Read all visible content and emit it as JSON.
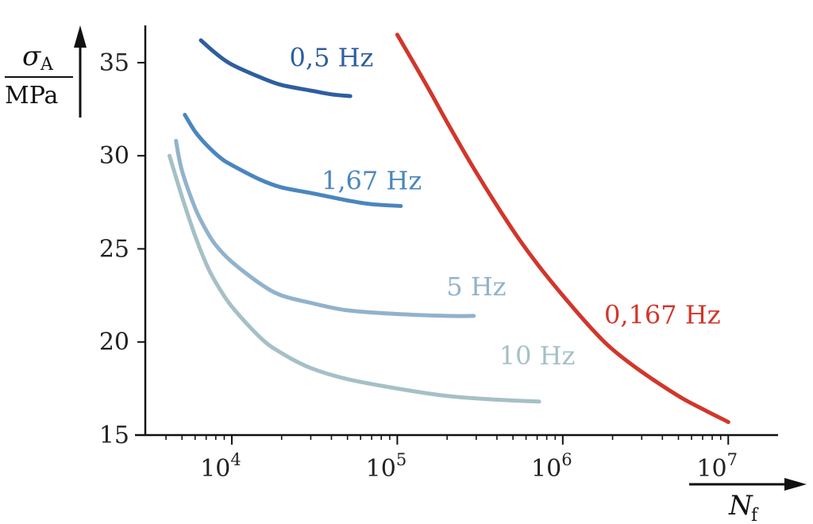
{
  "chart_data": {
    "type": "line",
    "xscale": "log",
    "xlim": [
      3000,
      20000000
    ],
    "ylim": [
      15,
      37
    ],
    "x_ticks": [
      {
        "value": 10000,
        "base": "10",
        "exp": "4"
      },
      {
        "value": 100000,
        "base": "10",
        "exp": "5"
      },
      {
        "value": 1000000,
        "base": "10",
        "exp": "6"
      },
      {
        "value": 10000000,
        "base": "10",
        "exp": "7"
      }
    ],
    "y_ticks": [
      {
        "value": 15,
        "label": "15"
      },
      {
        "value": 20,
        "label": "20"
      },
      {
        "value": 25,
        "label": "25"
      },
      {
        "value": 30,
        "label": "30"
      },
      {
        "value": 35,
        "label": "35"
      }
    ],
    "xlabel": {
      "main": "N",
      "sub": "f"
    },
    "ylabel": {
      "main": "σ",
      "sub": "A",
      "denominator": "MPa"
    },
    "grid": false,
    "series": [
      {
        "name": "0,5 Hz",
        "color": "#2E5E9E",
        "label_pos": {
          "x": 40000,
          "y": 34.8
        },
        "points": [
          [
            6500,
            36.2
          ],
          [
            8000,
            35.5
          ],
          [
            10000,
            34.9
          ],
          [
            15000,
            34.2
          ],
          [
            20000,
            33.8
          ],
          [
            30000,
            33.5
          ],
          [
            40000,
            33.3
          ],
          [
            52000,
            33.2
          ]
        ]
      },
      {
        "name": "1,67 Hz",
        "color": "#4A86BE",
        "label_pos": {
          "x": 70000,
          "y": 28.2
        },
        "points": [
          [
            5200,
            32.2
          ],
          [
            6000,
            31.3
          ],
          [
            7000,
            30.6
          ],
          [
            8500,
            29.9
          ],
          [
            10000,
            29.5
          ],
          [
            15000,
            28.7
          ],
          [
            20000,
            28.3
          ],
          [
            30000,
            28.0
          ],
          [
            50000,
            27.6
          ],
          [
            70000,
            27.4
          ],
          [
            105000,
            27.3
          ]
        ]
      },
      {
        "name": "5 Hz",
        "color": "#91B2CC",
        "label_pos": {
          "x": 300000,
          "y": 22.5
        },
        "points": [
          [
            4600,
            30.8
          ],
          [
            5000,
            29.2
          ],
          [
            6000,
            27.2
          ],
          [
            7000,
            26.0
          ],
          [
            8000,
            25.2
          ],
          [
            10000,
            24.3
          ],
          [
            15000,
            23.1
          ],
          [
            20000,
            22.5
          ],
          [
            30000,
            22.1
          ],
          [
            50000,
            21.7
          ],
          [
            100000,
            21.5
          ],
          [
            200000,
            21.4
          ],
          [
            290000,
            21.4
          ]
        ]
      },
      {
        "name": "10 Hz",
        "color": "#A5C0C6",
        "label_pos": {
          "x": 700000,
          "y": 18.8
        },
        "points": [
          [
            4200,
            30.0
          ],
          [
            5000,
            27.8
          ],
          [
            6000,
            25.7
          ],
          [
            7000,
            24.2
          ],
          [
            8000,
            23.2
          ],
          [
            10000,
            21.9
          ],
          [
            15000,
            20.2
          ],
          [
            20000,
            19.4
          ],
          [
            30000,
            18.6
          ],
          [
            50000,
            18.0
          ],
          [
            100000,
            17.5
          ],
          [
            200000,
            17.1
          ],
          [
            400000,
            16.9
          ],
          [
            720000,
            16.8
          ]
        ]
      },
      {
        "name": "0,167 Hz",
        "color": "#D2362B",
        "label_pos": {
          "x": 4000000,
          "y": 21.0
        },
        "points": [
          [
            100000,
            36.5
          ],
          [
            150000,
            33.8
          ],
          [
            200000,
            31.8
          ],
          [
            300000,
            29.1
          ],
          [
            500000,
            26.0
          ],
          [
            700000,
            24.2
          ],
          [
            1000000,
            22.5
          ],
          [
            1500000,
            20.7
          ],
          [
            2000000,
            19.6
          ],
          [
            3000000,
            18.4
          ],
          [
            5000000,
            17.1
          ],
          [
            7000000,
            16.4
          ],
          [
            10000000,
            15.7
          ]
        ]
      }
    ]
  }
}
